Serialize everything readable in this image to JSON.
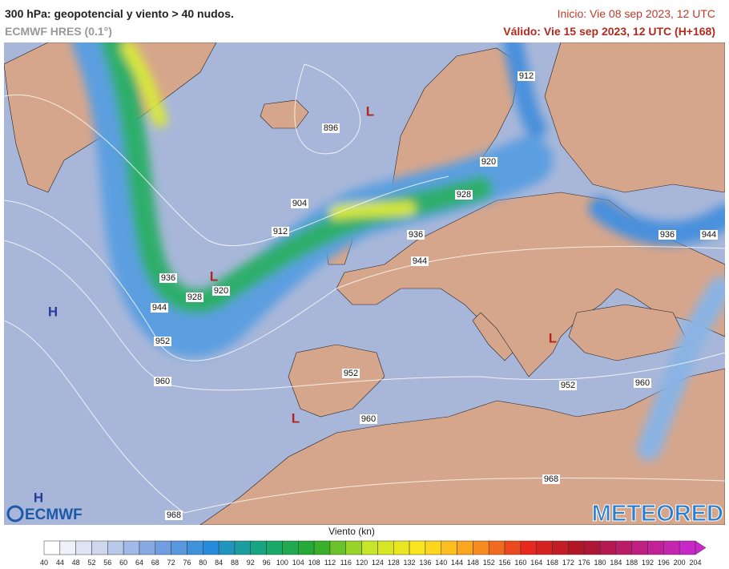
{
  "header": {
    "title": "300 hPa: geopotencial y viento > 40 nudos.",
    "model": "ECMWF HRES (0.1°)",
    "init": "Inicio: Vie 08 sep 2023, 12 UTC",
    "valid": "Válido: Vie 15 sep 2023, 12 UTC (H+168)"
  },
  "map": {
    "contour_labels": [
      "912",
      "896",
      "920",
      "904",
      "928",
      "912",
      "936",
      "944",
      "936",
      "944",
      "936",
      "920",
      "928",
      "944",
      "952",
      "960",
      "952",
      "960",
      "952",
      "960",
      "968",
      "968"
    ],
    "pressure_centers": [
      "L",
      "L",
      "H",
      "L",
      "L",
      "H"
    ]
  },
  "logos": {
    "left": "ECMWF",
    "right": "METEORED"
  },
  "legend": {
    "title": "Viento (kn)",
    "ticks": [
      40,
      44,
      48,
      52,
      56,
      60,
      64,
      68,
      72,
      76,
      80,
      84,
      88,
      92,
      96,
      100,
      104,
      108,
      112,
      116,
      120,
      124,
      128,
      132,
      136,
      140,
      144,
      148,
      152,
      156,
      160,
      164,
      168,
      172,
      176,
      180,
      184,
      188,
      192,
      196,
      200,
      204
    ]
  }
}
